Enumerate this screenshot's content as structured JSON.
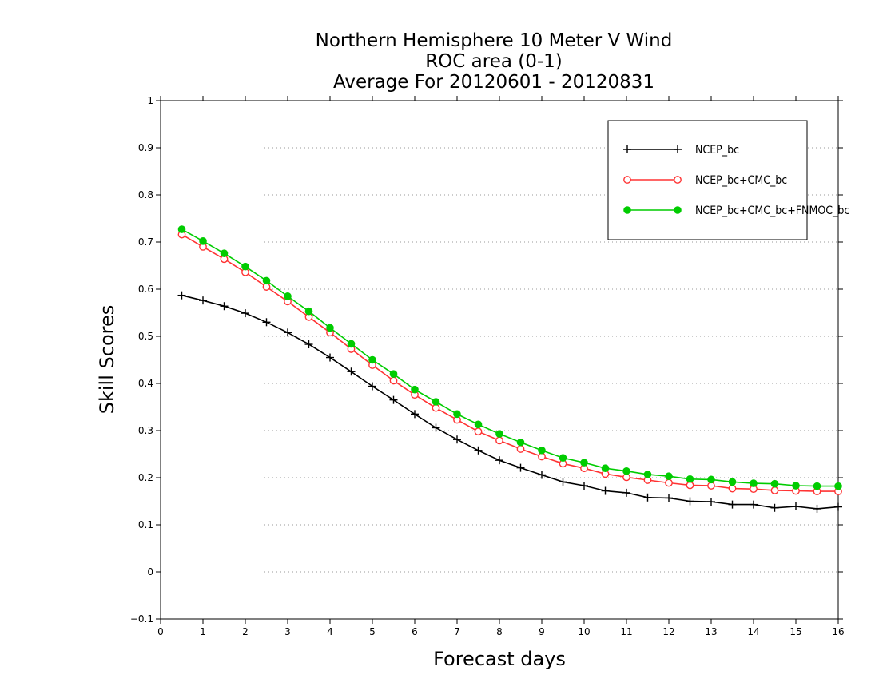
{
  "chart_data": {
    "type": "line",
    "title_lines": [
      "Northern Hemisphere 10 Meter V Wind",
      "ROC area (0-1)",
      "Average For 20120601 - 20120831"
    ],
    "xlabel": "Forecast days",
    "ylabel": "Skill Scores",
    "xlim": [
      0,
      16
    ],
    "ylim": [
      -0.1,
      1
    ],
    "xticks": [
      "0",
      "1",
      "2",
      "3",
      "4",
      "5",
      "6",
      "7",
      "8",
      "9",
      "10",
      "11",
      "12",
      "13",
      "14",
      "15",
      "16"
    ],
    "yticks": [
      "−0.1",
      "0",
      "0.1",
      "0.2",
      "0.3",
      "0.4",
      "0.5",
      "0.6",
      "0.7",
      "0.8",
      "0.9",
      "1"
    ],
    "grid": "horizontal dotted",
    "legend_position": "top-right",
    "x": [
      0.5,
      1,
      1.5,
      2,
      2.5,
      3,
      3.5,
      4,
      4.5,
      5,
      5.5,
      6,
      6.5,
      7,
      7.5,
      8,
      8.5,
      9,
      9.5,
      10,
      10.5,
      11,
      11.5,
      12,
      12.5,
      13,
      13.5,
      14,
      14.5,
      15,
      15.5,
      16
    ],
    "series": [
      {
        "name": "NCEP_bc",
        "color": "#000000",
        "marker": "plus",
        "values": [
          0.587,
          0.576,
          0.564,
          0.549,
          0.53,
          0.508,
          0.483,
          0.455,
          0.425,
          0.394,
          0.365,
          0.335,
          0.306,
          0.281,
          0.258,
          0.237,
          0.221,
          0.206,
          0.191,
          0.183,
          0.172,
          0.168,
          0.158,
          0.157,
          0.15,
          0.149,
          0.143,
          0.143,
          0.136,
          0.139,
          0.134,
          0.138
        ]
      },
      {
        "name": "NCEP_bc+CMC_bc",
        "color": "#ff3333",
        "marker": "open-circle",
        "values": [
          0.716,
          0.69,
          0.664,
          0.636,
          0.605,
          0.574,
          0.541,
          0.508,
          0.473,
          0.439,
          0.406,
          0.376,
          0.348,
          0.323,
          0.298,
          0.279,
          0.261,
          0.245,
          0.23,
          0.22,
          0.208,
          0.201,
          0.195,
          0.189,
          0.184,
          0.183,
          0.177,
          0.176,
          0.173,
          0.172,
          0.171,
          0.171
        ]
      },
      {
        "name": "NCEP_bc+CMC_bc+FNMOC_bc",
        "color": "#00cc00",
        "marker": "filled-circle",
        "values": [
          0.727,
          0.702,
          0.676,
          0.648,
          0.618,
          0.585,
          0.553,
          0.518,
          0.484,
          0.45,
          0.42,
          0.387,
          0.361,
          0.335,
          0.313,
          0.293,
          0.275,
          0.258,
          0.242,
          0.232,
          0.22,
          0.214,
          0.207,
          0.203,
          0.197,
          0.196,
          0.191,
          0.188,
          0.187,
          0.183,
          0.182,
          0.182
        ]
      }
    ]
  }
}
